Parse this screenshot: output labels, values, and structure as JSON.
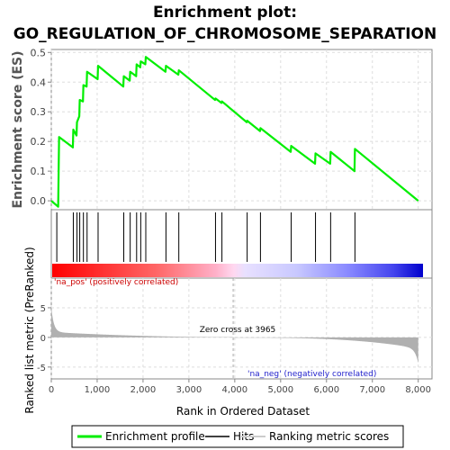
{
  "chart_data": {
    "type": "line",
    "title_line1": "Enrichment plot:",
    "title_line2": "GO_REGULATION_OF_CHROMOSOME_SEPARATION",
    "ylabel_top": "Enrichment score (ES)",
    "ylabel_bottom": "Ranked list metric (PreRanked)",
    "xlabel": "Rank in Ordered Dataset",
    "xlim": [
      0,
      8300
    ],
    "x_ticks": [
      0,
      1000,
      2000,
      3000,
      4000,
      5000,
      6000,
      7000,
      8000
    ],
    "es_ylim": [
      -0.03,
      0.51
    ],
    "es_ticks": [
      0.0,
      0.1,
      0.2,
      0.3,
      0.4,
      0.5
    ],
    "metric_ylim": [
      -7,
      10
    ],
    "metric_ticks": [
      -5,
      0,
      5
    ],
    "zero_cross_rank": 3965,
    "zero_cross_label": "Zero cross at 3965",
    "pos_label": "'na_pos' (positively correlated)",
    "neg_label": "'na_neg' (negatively correlated)",
    "hits": [
      120,
      480,
      560,
      620,
      700,
      780,
      1020,
      1580,
      1720,
      1860,
      1950,
      2060,
      2500,
      2780,
      3580,
      3720,
      4270,
      4560,
      5230,
      5760,
      6090,
      6620
    ],
    "enrichment_profile": [
      [
        0,
        0.0
      ],
      [
        150,
        -0.02
      ],
      [
        160,
        0.1
      ],
      [
        170,
        0.215
      ],
      [
        470,
        0.18
      ],
      [
        480,
        0.24
      ],
      [
        550,
        0.22
      ],
      [
        560,
        0.265
      ],
      [
        610,
        0.285
      ],
      [
        620,
        0.34
      ],
      [
        690,
        0.335
      ],
      [
        700,
        0.39
      ],
      [
        770,
        0.385
      ],
      [
        780,
        0.435
      ],
      [
        1010,
        0.41
      ],
      [
        1020,
        0.455
      ],
      [
        1570,
        0.385
      ],
      [
        1580,
        0.42
      ],
      [
        1710,
        0.405
      ],
      [
        1720,
        0.435
      ],
      [
        1850,
        0.42
      ],
      [
        1860,
        0.46
      ],
      [
        1940,
        0.45
      ],
      [
        1950,
        0.47
      ],
      [
        2050,
        0.46
      ],
      [
        2060,
        0.485
      ],
      [
        2490,
        0.435
      ],
      [
        2500,
        0.455
      ],
      [
        2770,
        0.425
      ],
      [
        2780,
        0.44
      ],
      [
        3570,
        0.34
      ],
      [
        3580,
        0.345
      ],
      [
        3710,
        0.33
      ],
      [
        3720,
        0.335
      ],
      [
        4260,
        0.265
      ],
      [
        4270,
        0.27
      ],
      [
        4550,
        0.235
      ],
      [
        4560,
        0.245
      ],
      [
        5220,
        0.165
      ],
      [
        5230,
        0.185
      ],
      [
        5750,
        0.125
      ],
      [
        5760,
        0.16
      ],
      [
        6080,
        0.125
      ],
      [
        6090,
        0.165
      ],
      [
        6610,
        0.1
      ],
      [
        6620,
        0.175
      ],
      [
        8000,
        0.0
      ]
    ],
    "legend": [
      "Enrichment profile",
      "Hits",
      "Ranking metric scores"
    ],
    "colors": {
      "profile": "#00ee00",
      "hits": "#000000",
      "metric": "#b0b0b0",
      "grid": "#dddddd",
      "pos_text": "#cc0000",
      "neg_text": "#2222cc"
    }
  }
}
